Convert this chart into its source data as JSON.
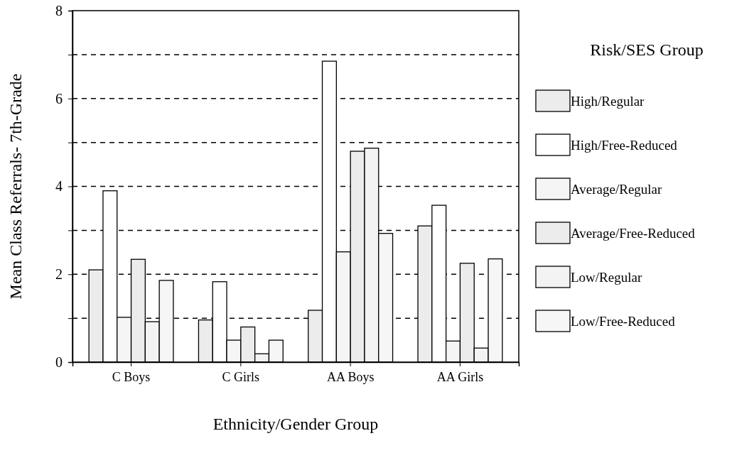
{
  "chart_data": {
    "type": "bar",
    "xlabel": "Ethnicity/Gender Group",
    "ylabel": "Mean Class Referrals- 7th-Grade",
    "legend_title": "Risk/SES Group",
    "categories": [
      "C Boys",
      "C Girls",
      "AA Boys",
      "AA Girls"
    ],
    "series": [
      {
        "name": "High/Regular",
        "color": "#ececec",
        "values": [
          2.1,
          0.96,
          1.18,
          3.1
        ]
      },
      {
        "name": "High/Free-Reduced",
        "color": "#ffffff",
        "values": [
          3.9,
          1.83,
          6.85,
          3.57
        ]
      },
      {
        "name": "Average/Regular",
        "color": "#f5f5f5",
        "values": [
          1.02,
          0.5,
          2.51,
          0.48
        ]
      },
      {
        "name": "Average/Free-Reduced",
        "color": "#ececec",
        "values": [
          2.34,
          0.8,
          4.8,
          2.25
        ]
      },
      {
        "name": "Low/Regular",
        "color": "#f3f3f3",
        "values": [
          0.92,
          0.19,
          4.87,
          0.32
        ]
      },
      {
        "name": "Low/Free-Reduced",
        "color": "#f6f6f6",
        "values": [
          1.86,
          0.5,
          2.93,
          2.35
        ]
      }
    ],
    "ylim": [
      0,
      8
    ],
    "yticks": [
      0,
      {
        "value": 1,
        "label": null
      },
      2,
      {
        "value": 3,
        "label": null
      },
      4,
      {
        "value": 5,
        "label": null
      },
      6,
      {
        "value": 7,
        "label": null
      },
      8
    ],
    "grid": "y",
    "legend": "right"
  }
}
